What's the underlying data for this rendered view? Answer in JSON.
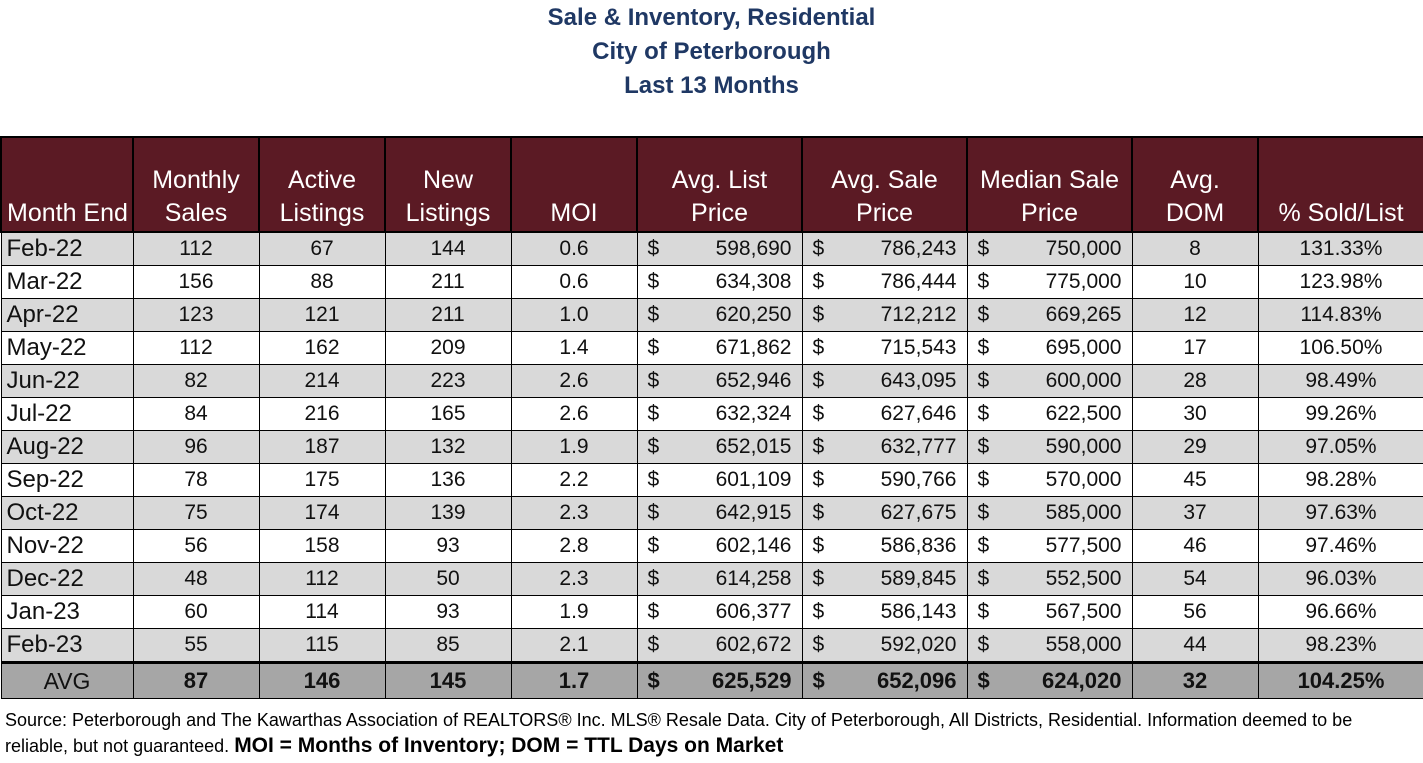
{
  "title": {
    "line1": "Sale & Inventory, Residential",
    "line2": "City of Peterborough",
    "line3": "Last 13 Months"
  },
  "table": {
    "headers": [
      [
        "Month End"
      ],
      [
        "Monthly",
        "Sales"
      ],
      [
        "Active",
        "Listings"
      ],
      [
        "New",
        "Listings"
      ],
      [
        "MOI"
      ],
      [
        "Avg. List",
        "Price"
      ],
      [
        "Avg. Sale",
        "Price"
      ],
      [
        "Median Sale",
        "Price"
      ],
      [
        "Avg.",
        "DOM"
      ],
      [
        "% Sold/List"
      ]
    ],
    "currency_symbol": "$",
    "rows": [
      [
        "Feb-22",
        "112",
        "67",
        "144",
        "0.6",
        "598,690",
        "786,243",
        "750,000",
        "8",
        "131.33%"
      ],
      [
        "Mar-22",
        "156",
        "88",
        "211",
        "0.6",
        "634,308",
        "786,444",
        "775,000",
        "10",
        "123.98%"
      ],
      [
        "Apr-22",
        "123",
        "121",
        "211",
        "1.0",
        "620,250",
        "712,212",
        "669,265",
        "12",
        "114.83%"
      ],
      [
        "May-22",
        "112",
        "162",
        "209",
        "1.4",
        "671,862",
        "715,543",
        "695,000",
        "17",
        "106.50%"
      ],
      [
        "Jun-22",
        "82",
        "214",
        "223",
        "2.6",
        "652,946",
        "643,095",
        "600,000",
        "28",
        "98.49%"
      ],
      [
        "Jul-22",
        "84",
        "216",
        "165",
        "2.6",
        "632,324",
        "627,646",
        "622,500",
        "30",
        "99.26%"
      ],
      [
        "Aug-22",
        "96",
        "187",
        "132",
        "1.9",
        "652,015",
        "632,777",
        "590,000",
        "29",
        "97.05%"
      ],
      [
        "Sep-22",
        "78",
        "175",
        "136",
        "2.2",
        "601,109",
        "590,766",
        "570,000",
        "45",
        "98.28%"
      ],
      [
        "Oct-22",
        "75",
        "174",
        "139",
        "2.3",
        "642,915",
        "627,675",
        "585,000",
        "37",
        "97.63%"
      ],
      [
        "Nov-22",
        "56",
        "158",
        "93",
        "2.8",
        "602,146",
        "586,836",
        "577,500",
        "46",
        "97.46%"
      ],
      [
        "Dec-22",
        "48",
        "112",
        "50",
        "2.3",
        "614,258",
        "589,845",
        "552,500",
        "54",
        "96.03%"
      ],
      [
        "Jan-23",
        "60",
        "114",
        "93",
        "1.9",
        "606,377",
        "586,143",
        "567,500",
        "56",
        "96.66%"
      ],
      [
        "Feb-23",
        "55",
        "115",
        "85",
        "2.1",
        "602,672",
        "592,020",
        "558,000",
        "44",
        "98.23%"
      ]
    ],
    "avg": [
      "AVG",
      "87",
      "146",
      "145",
      "1.7",
      "625,529",
      "652,096",
      "624,020",
      "32",
      "104.25%"
    ]
  },
  "footer": {
    "source": "Source: Peterborough and The Kawarthas Association of REALTORS® Inc. MLS® Resale Data. City of Peterborough, All Districts, Residential.  Information deemed to be reliable, but not guaranteed.",
    "definitions": "MOI = Months of Inventory; DOM = TTL Days on Market"
  },
  "colors": {
    "header_bg": "#5b1a24",
    "title_text": "#1f3864",
    "shaded_row": "#d9d9d9",
    "avg_row": "#a6a6a6"
  }
}
